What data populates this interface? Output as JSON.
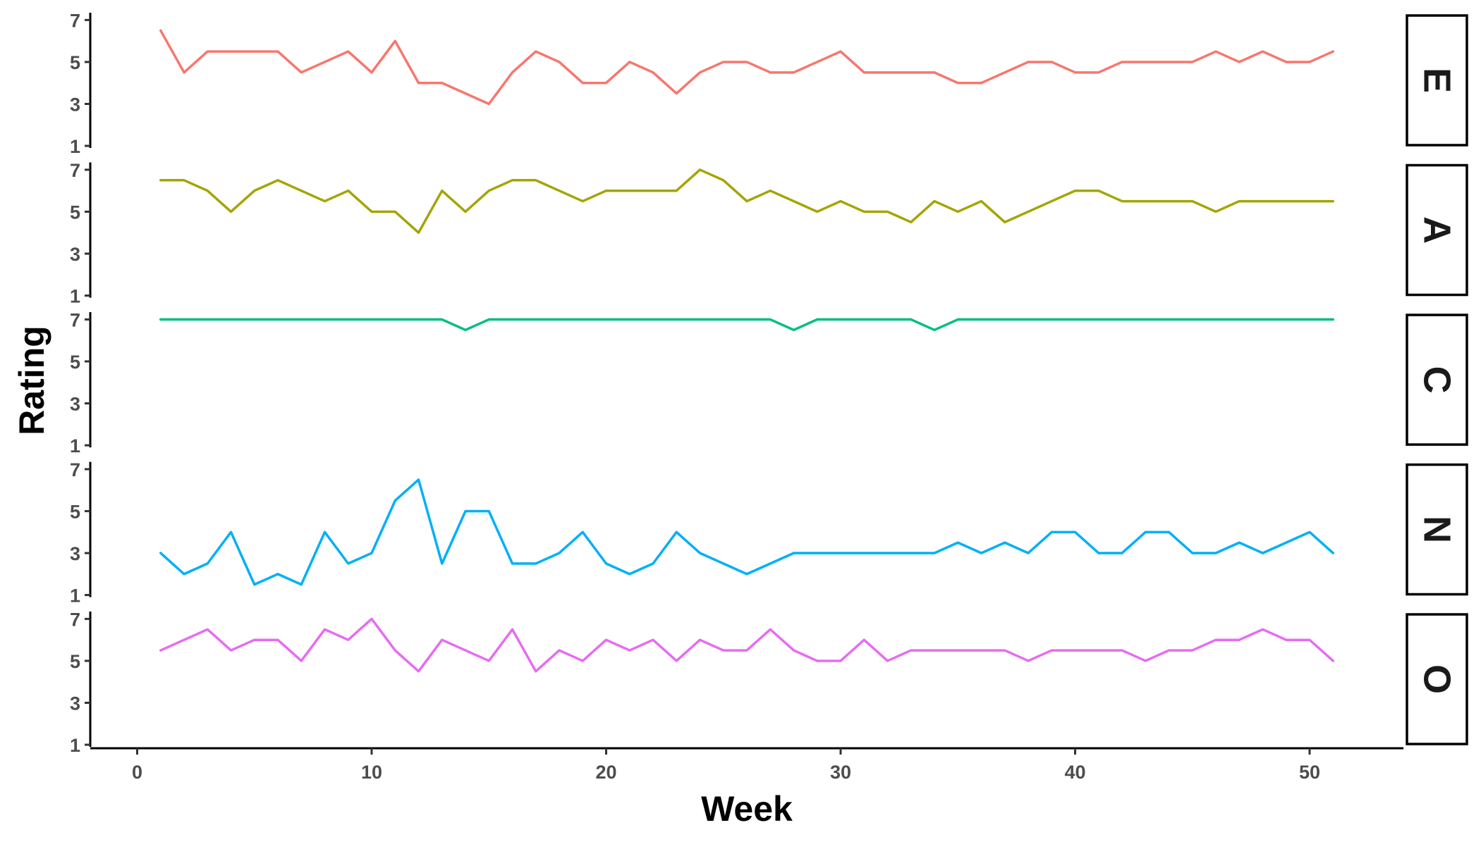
{
  "chart_data": {
    "type": "line",
    "title": "",
    "xlabel": "Week",
    "ylabel": "Rating",
    "xlim": [
      -2,
      54
    ],
    "ylim": [
      0.9,
      7.35
    ],
    "x_ticks": [
      0,
      10,
      20,
      30,
      40,
      50
    ],
    "y_ticks": [
      1,
      3,
      5,
      7
    ],
    "x": [
      1,
      2,
      3,
      4,
      5,
      6,
      7,
      8,
      9,
      10,
      11,
      12,
      13,
      14,
      15,
      16,
      17,
      18,
      19,
      20,
      21,
      22,
      23,
      24,
      25,
      26,
      27,
      28,
      29,
      30,
      31,
      32,
      33,
      34,
      35,
      36,
      37,
      38,
      39,
      40,
      41,
      42,
      43,
      44,
      45,
      46,
      47,
      48,
      49,
      50,
      51
    ],
    "grid": false,
    "legend": "none",
    "facets": [
      {
        "strip": "E",
        "color": "#F8766D",
        "values": [
          6.5,
          4.5,
          5.5,
          5.5,
          5.5,
          5.5,
          4.5,
          5,
          5.5,
          4.5,
          6,
          4,
          4,
          3.5,
          3,
          4.5,
          5.5,
          5,
          4,
          4,
          5,
          4.5,
          3.5,
          4.5,
          5,
          5,
          4.5,
          4.5,
          5,
          5.5,
          4.5,
          4.5,
          4.5,
          4.5,
          4,
          4,
          4.5,
          5,
          5,
          4.5,
          4.5,
          5,
          5,
          5,
          5,
          5.5,
          5,
          5.5,
          5,
          5,
          5.5
        ]
      },
      {
        "strip": "A",
        "color": "#A3A500",
        "values": [
          6.5,
          6.5,
          6,
          5,
          6,
          6.5,
          6,
          5.5,
          6,
          5,
          5,
          4,
          6,
          5,
          6,
          6.5,
          6.5,
          6,
          5.5,
          6,
          6,
          6,
          6,
          7,
          6.5,
          5.5,
          6,
          5.5,
          5,
          5.5,
          5,
          5,
          4.5,
          5.5,
          5,
          5.5,
          4.5,
          5,
          5.5,
          6,
          6,
          5.5,
          5.5,
          5.5,
          5.5,
          5,
          5.5,
          5.5,
          5.5,
          5.5,
          5.5
        ]
      },
      {
        "strip": "C",
        "color": "#00BF7D",
        "values": [
          7,
          7,
          7,
          7,
          7,
          7,
          7,
          7,
          7,
          7,
          7,
          7,
          7,
          6.5,
          7,
          7,
          7,
          7,
          7,
          7,
          7,
          7,
          7,
          7,
          7,
          7,
          7,
          6.5,
          7,
          7,
          7,
          7,
          7,
          6.5,
          7,
          7,
          7,
          7,
          7,
          7,
          7,
          7,
          7,
          7,
          7,
          7,
          7,
          7,
          7,
          7,
          7
        ]
      },
      {
        "strip": "N",
        "color": "#00B0F6",
        "values": [
          3,
          2,
          2.5,
          4,
          1.5,
          2,
          1.5,
          4,
          2.5,
          3,
          5.5,
          6.5,
          2.5,
          5,
          5,
          2.5,
          2.5,
          3,
          4,
          2.5,
          2,
          2.5,
          4,
          3,
          2.5,
          2,
          2.5,
          3,
          3,
          3,
          3,
          3,
          3,
          3,
          3.5,
          3,
          3.5,
          3,
          4,
          4,
          3,
          3,
          4,
          4,
          3,
          3,
          3.5,
          3,
          3.5,
          4,
          3
        ]
      },
      {
        "strip": "O",
        "color": "#E76BF3",
        "values": [
          5.5,
          6,
          6.5,
          5.5,
          6,
          6,
          5,
          6.5,
          6,
          7,
          5.5,
          4.5,
          6,
          5.5,
          5,
          6.5,
          4.5,
          5.5,
          5,
          6,
          5.5,
          6,
          5,
          6,
          5.5,
          5.5,
          6.5,
          5.5,
          5,
          5,
          6,
          5,
          5.5,
          5.5,
          5.5,
          5.5,
          5.5,
          5,
          5.5,
          5.5,
          5.5,
          5.5,
          5,
          5.5,
          5.5,
          6,
          6,
          6.5,
          6,
          6,
          5
        ]
      }
    ]
  }
}
